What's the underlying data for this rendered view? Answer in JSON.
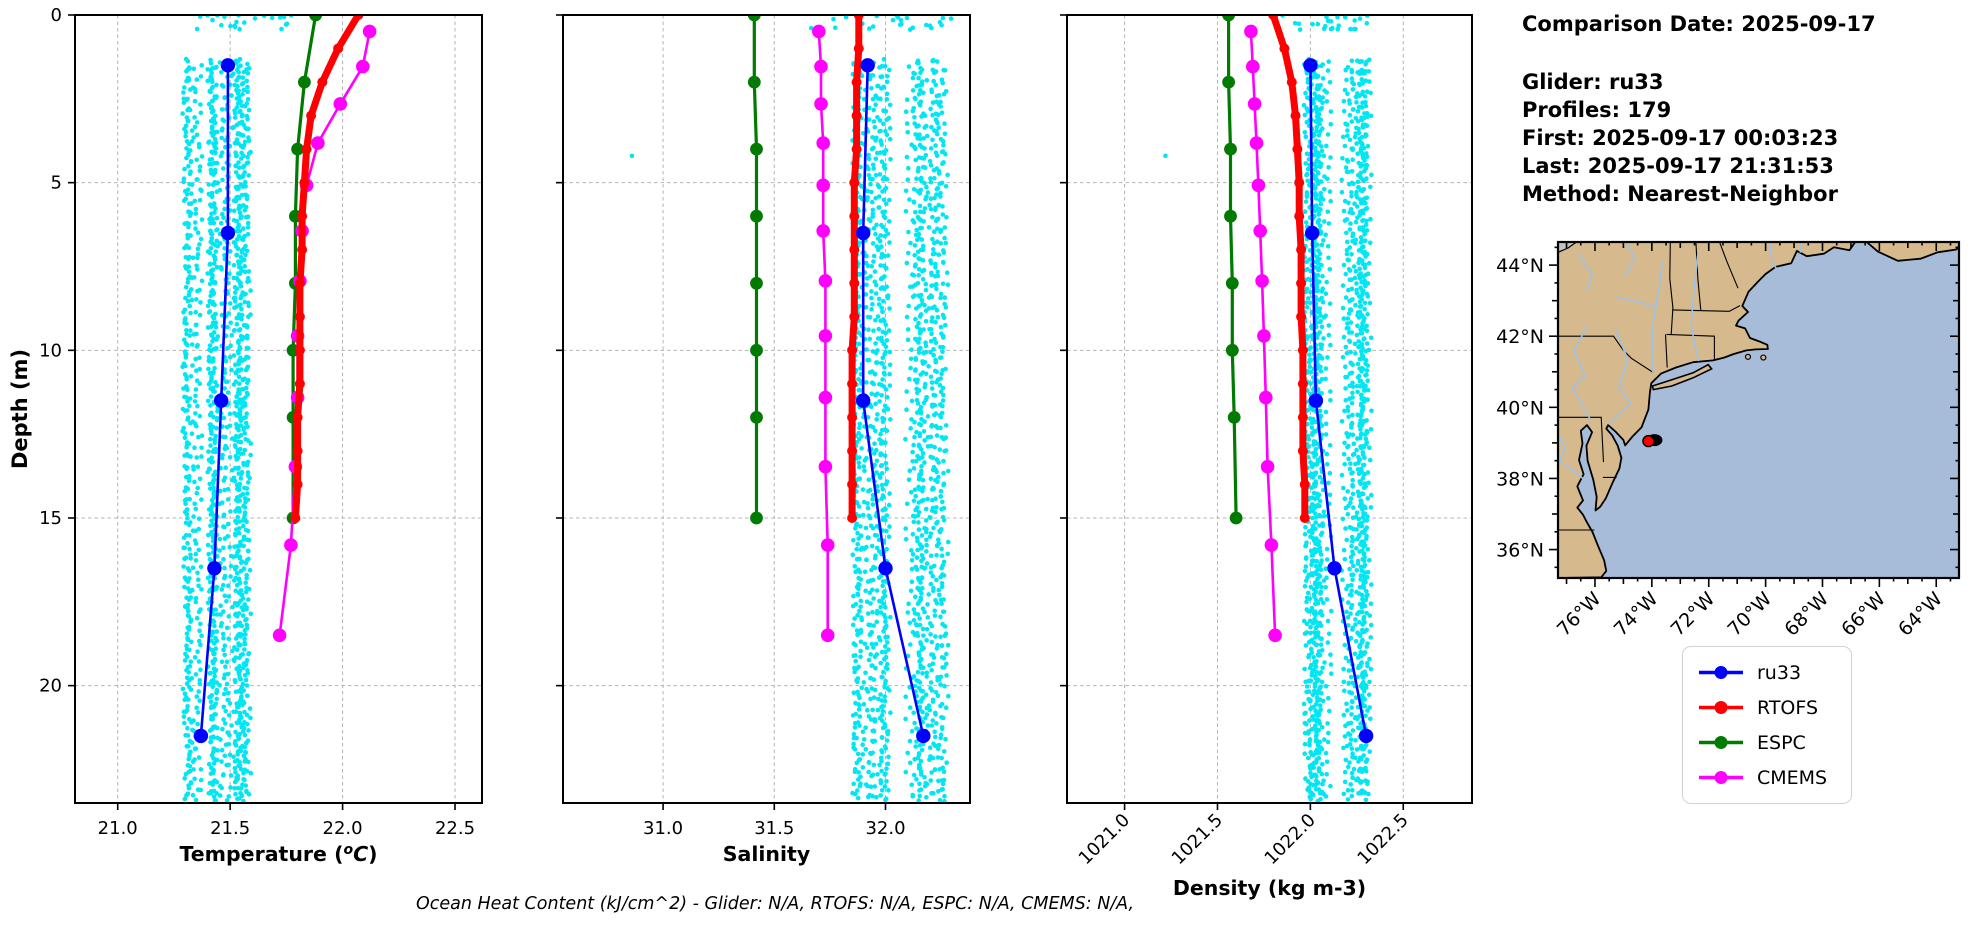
{
  "info": {
    "comparison_date": "Comparison Date: 2025-09-17",
    "glider": "Glider: ru33",
    "profiles": "Profiles: 179",
    "first": "First: 2025-09-17 00:03:23",
    "last": "Last: 2025-09-17 21:31:53",
    "method": "Method: Nearest-Neighbor"
  },
  "footer": {
    "ohc": "Ocean Heat Content (kJ/cm^2) - Glider: N/A,  RTOFS: N/A,  ESPC: N/A,  CMEMS: N/A,"
  },
  "legend": {
    "items": [
      {
        "label": "ru33",
        "color": "#0000ff"
      },
      {
        "label": "RTOFS",
        "color": "#ff0000"
      },
      {
        "label": "ESPC",
        "color": "#007a00"
      },
      {
        "label": "CMEMS",
        "color": "#ff00ff"
      }
    ]
  },
  "colors": {
    "scatter": "#00e6f2",
    "ru33": "#0000ff",
    "rtofs": "#ff0000",
    "espc": "#007a00",
    "cmems": "#ff00ff",
    "grid": "#b4b4b4",
    "land": "#d6b98c",
    "ocean": "#a7bcd9",
    "river": "#9dc2ea",
    "canada": "#c3c3c3",
    "marker_red": "#ff0000"
  },
  "depth_axis": {
    "label": "Depth (m)",
    "ticks": [
      0,
      5,
      10,
      15,
      20
    ],
    "lim": [
      0,
      23.5
    ]
  },
  "chart_data": [
    {
      "id": "temperature",
      "type": "scatter",
      "xlabel": "Temperature (°C)",
      "xlim": [
        20.81,
        22.62
      ],
      "xticks": [
        21.0,
        21.5,
        22.0,
        22.5
      ],
      "rotated_xticklabels": false,
      "series": [
        {
          "name": "ru33",
          "depths": [
            1.5,
            6.5,
            11.5,
            16.5,
            21.5
          ],
          "values": [
            21.49,
            21.49,
            21.46,
            21.43,
            21.37
          ]
        },
        {
          "name": "RTOFS",
          "depths": [
            0,
            1,
            2,
            3,
            4,
            5,
            6,
            7,
            8,
            9,
            10,
            11,
            12,
            13,
            14,
            15
          ],
          "values": [
            22.07,
            21.98,
            21.91,
            21.86,
            21.84,
            21.83,
            21.82,
            21.82,
            21.81,
            21.81,
            21.81,
            21.81,
            21.8,
            21.8,
            21.8,
            21.79
          ]
        },
        {
          "name": "ESPC",
          "depths": [
            0,
            2,
            4,
            6,
            8,
            10,
            12,
            15
          ],
          "values": [
            21.88,
            21.83,
            21.8,
            21.79,
            21.79,
            21.78,
            21.78,
            21.78
          ]
        },
        {
          "name": "CMEMS",
          "depths": [
            0.49,
            1.54,
            2.65,
            3.82,
            5.08,
            6.44,
            7.93,
            9.57,
            11.41,
            13.47,
            15.81,
            18.5
          ],
          "values": [
            22.12,
            22.09,
            21.99,
            21.89,
            21.84,
            21.82,
            21.81,
            21.8,
            21.8,
            21.79,
            21.77,
            21.72
          ]
        }
      ],
      "glider_scatter": {
        "bands": [
          {
            "x_range": [
              21.3,
              21.445
            ],
            "depth_range": [
              1.3,
              23.45
            ],
            "profiles": 12
          },
          {
            "x_range": [
              21.455,
              21.585
            ],
            "depth_range": [
              1.3,
              23.45
            ],
            "profiles": 12
          }
        ],
        "surface_band": {
          "x_range": [
            21.35,
            21.8
          ],
          "depth_range": [
            0,
            0.45
          ],
          "n": 24
        },
        "outliers": []
      }
    },
    {
      "id": "salinity",
      "type": "scatter",
      "xlabel": "Salinity",
      "xlim": [
        30.55,
        32.38
      ],
      "xticks": [
        31.0,
        31.5,
        32.0
      ],
      "rotated_xticklabels": false,
      "series": [
        {
          "name": "ru33",
          "depths": [
            1.5,
            6.5,
            11.5,
            16.5,
            21.5
          ],
          "values": [
            31.92,
            31.9,
            31.9,
            32.0,
            32.17
          ]
        },
        {
          "name": "RTOFS",
          "depths": [
            0,
            1,
            2,
            3,
            4,
            5,
            6,
            7,
            8,
            9,
            10,
            11,
            12,
            13,
            14,
            15
          ],
          "values": [
            31.88,
            31.88,
            31.87,
            31.87,
            31.87,
            31.86,
            31.86,
            31.86,
            31.86,
            31.86,
            31.85,
            31.85,
            31.85,
            31.85,
            31.85,
            31.85
          ]
        },
        {
          "name": "ESPC",
          "depths": [
            0,
            2,
            4,
            6,
            8,
            10,
            12,
            15
          ],
          "values": [
            31.41,
            31.41,
            31.42,
            31.42,
            31.42,
            31.42,
            31.42,
            31.42
          ]
        },
        {
          "name": "CMEMS",
          "depths": [
            0.49,
            1.54,
            2.65,
            3.82,
            5.08,
            6.44,
            7.93,
            9.57,
            11.41,
            13.47,
            15.81,
            18.5
          ],
          "values": [
            31.7,
            31.71,
            31.71,
            31.72,
            31.72,
            31.72,
            31.73,
            31.73,
            31.73,
            31.73,
            31.74,
            31.74
          ]
        }
      ],
      "glider_scatter": {
        "bands": [
          {
            "x_range": [
              31.865,
              32.01
            ],
            "depth_range": [
              1.3,
              23.45
            ],
            "profiles": 12
          },
          {
            "x_range": [
              32.1,
              32.265
            ],
            "depth_range": [
              1.3,
              23.45
            ],
            "profiles": 12
          }
        ],
        "surface_band": {
          "x_range": [
            31.65,
            32.3
          ],
          "depth_range": [
            0,
            0.45
          ],
          "n": 24
        },
        "outliers": [
          [
            30.86,
            4.2
          ]
        ]
      }
    },
    {
      "id": "density",
      "type": "scatter",
      "xlabel": "Density (kg m-3)",
      "xlim": [
        1020.69,
        1022.87
      ],
      "xticks": [
        1021.0,
        1021.5,
        1022.0,
        1022.5
      ],
      "rotated_xticklabels": true,
      "series": [
        {
          "name": "ru33",
          "depths": [
            1.5,
            6.5,
            11.5,
            16.5,
            21.5
          ],
          "values": [
            1022.0,
            1022.01,
            1022.03,
            1022.13,
            1022.3
          ]
        },
        {
          "name": "RTOFS",
          "depths": [
            0,
            1,
            2,
            3,
            4,
            5,
            6,
            7,
            8,
            9,
            10,
            11,
            12,
            13,
            14,
            15
          ],
          "values": [
            1021.8,
            1021.86,
            1021.9,
            1021.92,
            1021.93,
            1021.94,
            1021.94,
            1021.95,
            1021.95,
            1021.95,
            1021.96,
            1021.96,
            1021.96,
            1021.96,
            1021.97,
            1021.97
          ]
        },
        {
          "name": "ESPC",
          "depths": [
            0,
            2,
            4,
            6,
            8,
            10,
            12,
            15
          ],
          "values": [
            1021.56,
            1021.56,
            1021.57,
            1021.57,
            1021.58,
            1021.58,
            1021.59,
            1021.6
          ]
        },
        {
          "name": "CMEMS",
          "depths": [
            0.49,
            1.54,
            2.65,
            3.82,
            5.08,
            6.44,
            7.93,
            9.57,
            11.41,
            13.47,
            15.81,
            18.5
          ],
          "values": [
            1021.68,
            1021.69,
            1021.7,
            1021.71,
            1021.72,
            1021.73,
            1021.74,
            1021.75,
            1021.76,
            1021.77,
            1021.79,
            1021.81
          ]
        }
      ],
      "glider_scatter": {
        "bands": [
          {
            "x_range": [
              1021.975,
              1022.12
            ],
            "depth_range": [
              1.3,
              23.45
            ],
            "profiles": 12
          },
          {
            "x_range": [
              1022.17,
              1022.315
            ],
            "depth_range": [
              1.3,
              23.45
            ],
            "profiles": 12
          }
        ],
        "surface_band": {
          "x_range": [
            1021.85,
            1022.32
          ],
          "depth_range": [
            0,
            0.45
          ],
          "n": 24
        },
        "outliers": [
          [
            1021.22,
            4.2
          ]
        ]
      }
    }
  ],
  "map": {
    "extent": {
      "lon": [
        -77.3,
        -63.2
      ],
      "lat": [
        35.2,
        44.65
      ]
    },
    "lat_ticks": [
      {
        "value": 44,
        "label": "44°N"
      },
      {
        "value": 42,
        "label": "42°N"
      },
      {
        "value": 40,
        "label": "40°N"
      },
      {
        "value": 38,
        "label": "38°N"
      },
      {
        "value": 36,
        "label": "36°N"
      }
    ],
    "lon_ticks": [
      {
        "value": -76,
        "label": "76°W"
      },
      {
        "value": -74,
        "label": "74°W"
      },
      {
        "value": -72,
        "label": "72°W"
      },
      {
        "value": -70,
        "label": "70°W"
      },
      {
        "value": -68,
        "label": "68°W"
      },
      {
        "value": -66,
        "label": "66°W"
      },
      {
        "value": -64,
        "label": "64°W"
      }
    ],
    "glider_marker": {
      "lon": -74.12,
      "lat": 39.05
    }
  }
}
